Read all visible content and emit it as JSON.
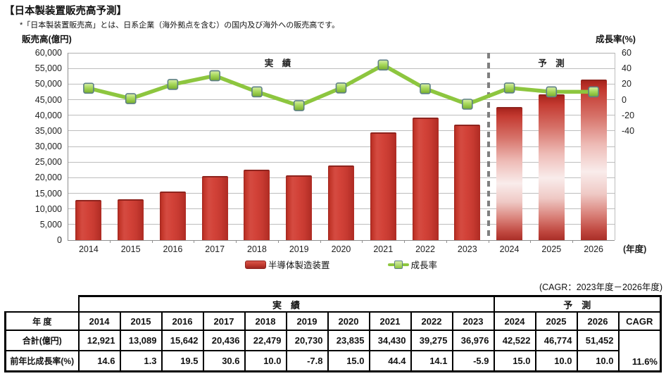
{
  "page": {
    "title": "【日本製装置販売高予測】",
    "note": "*「日本製装置販売高」とは、日系企業（海外拠点を含む）の国内及び海外への販売高です。"
  },
  "chart": {
    "left_axis_title": "販売高(億円)",
    "right_axis_title": "成長率(%)",
    "x_axis_unit": "(年度)",
    "actual_region_label": "実　績",
    "forecast_region_label": "予　測",
    "legend": {
      "bar_label": "半導体製造装置",
      "line_label": "成長率"
    }
  },
  "chart_data": {
    "type": "bar+line",
    "categories": [
      "2014",
      "2015",
      "2016",
      "2017",
      "2018",
      "2019",
      "2020",
      "2021",
      "2022",
      "2023",
      "2024",
      "2025",
      "2026"
    ],
    "series": [
      {
        "name": "半導体製造装置",
        "type": "bar",
        "axis": "left",
        "values": [
          12921,
          13089,
          15642,
          20436,
          22479,
          20730,
          23835,
          34430,
          39275,
          36976,
          42522,
          46774,
          51452
        ]
      },
      {
        "name": "成長率",
        "type": "line",
        "axis": "right",
        "values": [
          14.6,
          1.3,
          19.5,
          30.6,
          10.0,
          -7.8,
          15.0,
          44.4,
          14.1,
          -5.9,
          15.0,
          10.0,
          10.0
        ]
      }
    ],
    "left_axis": {
      "title": "販売高(億円)",
      "min": 0,
      "max": 60000,
      "step": 5000,
      "tick_format": "thousands-comma"
    },
    "right_axis": {
      "title": "成長率(%)",
      "ticks": [
        60,
        40,
        20,
        0,
        -20,
        -40
      ],
      "zero_aligns_with_left_value": 45000,
      "units_per_gridline": 20
    },
    "forecast_start_category": "2024",
    "actual_region_label": "実　績",
    "forecast_region_label": "予　測",
    "grid": true,
    "legend_position": "bottom",
    "x_axis_unit": "(年度)"
  },
  "cagr_note": "(CAGR：2023年度－2026年度)",
  "table": {
    "group_actual": "実　績",
    "group_forecast": "予　測",
    "header_year": "年 度",
    "header_cagr": "CAGR",
    "row_total_label": "合計(億円)",
    "row_growth_label": "前年比成長率(%)",
    "years": [
      "2014",
      "2015",
      "2016",
      "2017",
      "2018",
      "2019",
      "2020",
      "2021",
      "2022",
      "2023",
      "2024",
      "2025",
      "2026"
    ],
    "totals": [
      "12,921",
      "13,089",
      "15,642",
      "20,436",
      "22,479",
      "20,730",
      "23,835",
      "34,430",
      "39,275",
      "36,976",
      "42,522",
      "46,774",
      "51,452"
    ],
    "growth": [
      "14.6",
      "1.3",
      "19.5",
      "30.6",
      "10.0",
      "-7.8",
      "15.0",
      "44.4",
      "14.1",
      "-5.9",
      "15.0",
      "10.0",
      "10.0"
    ],
    "cagr_value": "11.6%",
    "actual_col_count": 10,
    "forecast_col_count": 4
  },
  "colors": {
    "bar_red": "#ce3a32",
    "bar_dark_red": "#9c2620",
    "line_green": "#8dc63f",
    "marker_green": "#a8d95c",
    "marker_border": "#5d7f86",
    "grid_gray": "#bdbdbd",
    "axis_gray": "#8f8f8f",
    "divider_gray": "#7f7f7f",
    "text_black": "#111111"
  }
}
